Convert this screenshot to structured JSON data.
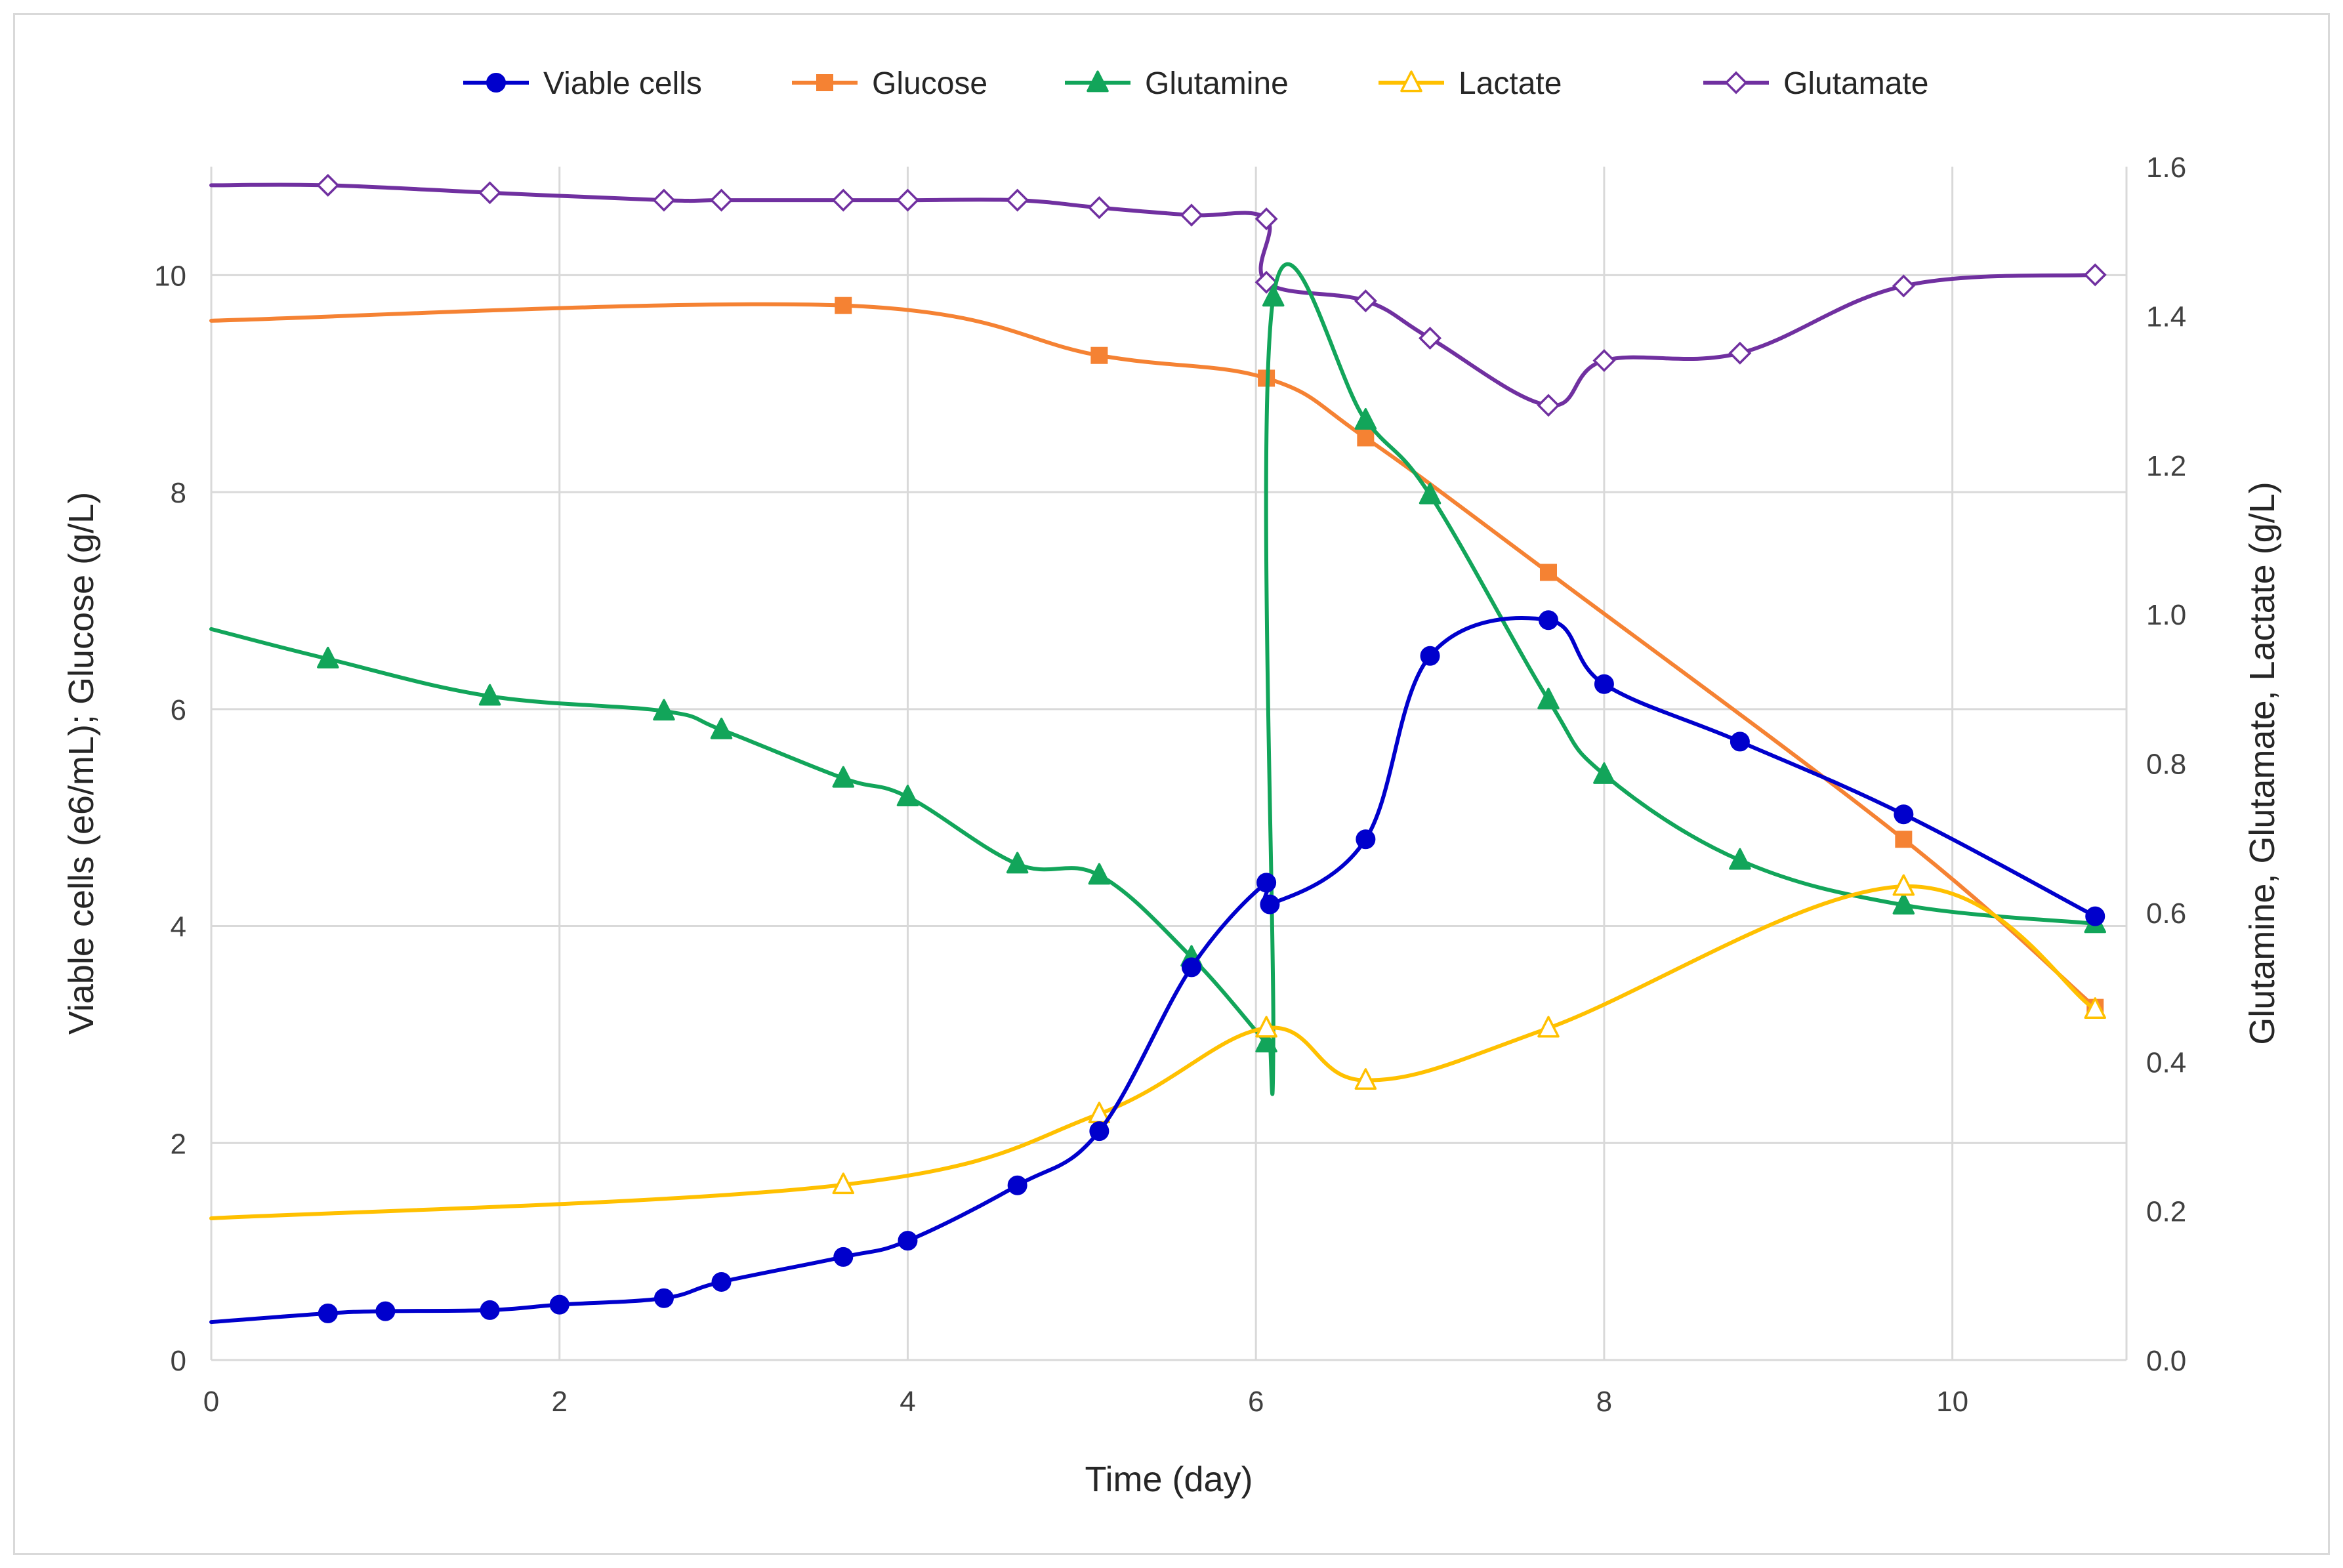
{
  "chart_data": {
    "type": "line",
    "title": "",
    "xlabel": "Time (day)",
    "ylabel_left": "Viable cells (e6/mL); Glucose (g/L)",
    "ylabel_right": "Glutamine, Glutamate, Lactate (g/L)",
    "xlim": [
      0,
      11
    ],
    "ylim_left": [
      0,
      11
    ],
    "ylim_right": [
      0,
      1.6
    ],
    "x_ticks": [
      "0",
      "2",
      "4",
      "6",
      "8",
      "10"
    ],
    "y_left_ticks": [
      "0",
      "2",
      "4",
      "6",
      "8",
      "10"
    ],
    "y_right_ticks": [
      "0.0",
      "0.2",
      "0.4",
      "0.6",
      "0.8",
      "1.0",
      "1.2",
      "1.4",
      "1.6"
    ],
    "grid": true,
    "legend_position": "top",
    "series": [
      {
        "name": "Viable cells",
        "axis": "left",
        "color": "#0000cc",
        "marker": "circle-filled",
        "marker_indices": [
          1,
          2,
          3,
          4,
          5,
          6,
          7,
          8,
          9,
          10,
          11,
          12,
          13,
          14,
          15,
          16,
          17,
          18,
          19,
          20,
          21
        ],
        "x": [
          0,
          0.67,
          1.0,
          1.6,
          2.0,
          2.6,
          2.93,
          3.63,
          4.0,
          4.63,
          5.1,
          5.63,
          6.06,
          6.08,
          6.63,
          7.0,
          7.68,
          8.0,
          8.78,
          9.72,
          10.82
        ],
        "y": [
          0.35,
          0.43,
          0.45,
          0.46,
          0.51,
          0.57,
          0.72,
          0.95,
          1.1,
          1.61,
          2.11,
          3.62,
          4.4,
          4.2,
          4.8,
          6.49,
          6.82,
          6.23,
          5.7,
          5.03,
          4.09
        ]
      },
      {
        "name": "Glucose",
        "axis": "left",
        "color": "#f58233",
        "marker": "square-filled",
        "marker_indices": [
          1,
          2,
          3,
          4,
          5,
          6,
          7
        ],
        "x": [
          0,
          3.63,
          5.1,
          6.06,
          6.63,
          7.68,
          9.72,
          10.82
        ],
        "y": [
          9.58,
          9.72,
          9.26,
          9.05,
          8.5,
          7.26,
          4.8,
          3.25
        ]
      },
      {
        "name": "Glutamine",
        "axis": "right",
        "color": "#12a55a",
        "marker": "triangle-filled",
        "marker_indices": [
          1,
          2,
          3,
          4,
          5,
          6,
          7,
          8,
          9,
          10,
          13,
          14,
          15,
          16,
          17,
          18,
          19,
          20
        ],
        "x": [
          0,
          0.67,
          1.6,
          2.6,
          2.93,
          3.63,
          4.0,
          4.63,
          5.1,
          5.63,
          6.06,
          6.08,
          6.1,
          6.1,
          6.63,
          7.0,
          7.68,
          8.0,
          8.78,
          9.72,
          10.82
        ],
        "y": [
          0.98,
          0.94,
          0.89,
          0.87,
          0.845,
          0.78,
          0.755,
          0.665,
          0.65,
          0.54,
          0.425,
          0.425,
          0.44,
          1.425,
          1.26,
          1.16,
          0.885,
          0.785,
          0.67,
          0.61,
          0.585
        ]
      },
      {
        "name": "Lactate",
        "axis": "right",
        "color": "#ffc000",
        "marker": "triangle-open",
        "marker_indices": [
          1,
          2,
          3,
          4,
          5,
          6,
          7,
          8
        ],
        "x": [
          0,
          3.63,
          5.1,
          6.06,
          6.63,
          7.68,
          9.72,
          10.82
        ],
        "y": [
          0.19,
          0.235,
          0.33,
          0.445,
          0.375,
          0.445,
          0.635,
          0.47
        ]
      },
      {
        "name": "Glutamate",
        "axis": "right",
        "color": "#7030a0",
        "marker": "diamond-open",
        "marker_indices": [
          1,
          2,
          3,
          4,
          5,
          6,
          7,
          8,
          9,
          10,
          11,
          12,
          13,
          14,
          15,
          16,
          17,
          18,
          19
        ],
        "x": [
          0,
          0.67,
          1.6,
          2.6,
          2.93,
          3.63,
          4.0,
          4.63,
          5.1,
          5.63,
          6.06,
          6.06,
          6.63,
          7.0,
          7.68,
          8.0,
          8.78,
          9.72,
          10.82
        ],
        "y": [
          1.575,
          1.575,
          1.565,
          1.555,
          1.555,
          1.555,
          1.555,
          1.555,
          1.545,
          1.535,
          1.53,
          1.445,
          1.42,
          1.37,
          1.28,
          1.34,
          1.35,
          1.44,
          1.455
        ]
      }
    ]
  }
}
